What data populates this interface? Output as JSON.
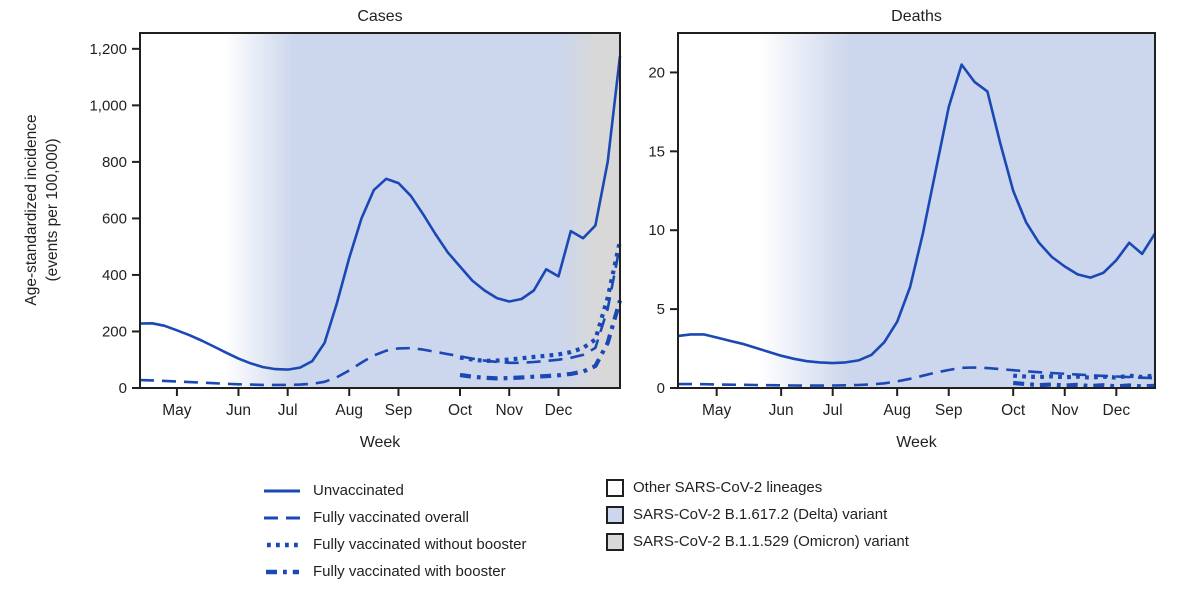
{
  "figure": {
    "ylabel_line1": "Age-standardized incidence",
    "ylabel_line2": "(events per 100,000)"
  },
  "colors": {
    "line": "#1a49b5",
    "axis": "#221f1f",
    "other_lineages_fill": "#ffffff",
    "delta_fill": "#ccd6ec",
    "omicron_fill": "#d8d8d8"
  },
  "legend": {
    "lines": [
      {
        "label": "Unvaccinated",
        "style": "solid"
      },
      {
        "label": "Fully vaccinated overall",
        "style": "dashed"
      },
      {
        "label": "Fully vaccinated without booster",
        "style": "dotted"
      },
      {
        "label": "Fully vaccinated with booster",
        "style": "dashdot"
      }
    ],
    "regions": [
      {
        "label": "Other SARS-CoV-2 lineages",
        "fill": "#ffffff"
      },
      {
        "label": "SARS-CoV-2 B.1.617.2 (Delta) variant",
        "fill": "#ccd6ec"
      },
      {
        "label": "SARS-CoV-2 B.1.1.529 (Omicron) variant",
        "fill": "#d8d8d8"
      }
    ]
  },
  "chart_data": [
    {
      "type": "line",
      "name": "cases",
      "title": "Cases",
      "xlabel": "Week",
      "ylabel": "Age-standardized incidence (events per 100,000)",
      "ylim": [
        0,
        1256
      ],
      "n_points": 40,
      "yticks": [
        {
          "value": 0,
          "label": "0"
        },
        {
          "value": 200,
          "label": "200"
        },
        {
          "value": 400,
          "label": "400"
        },
        {
          "value": 600,
          "label": "600"
        },
        {
          "value": 800,
          "label": "800"
        },
        {
          "value": 1000,
          "label": "1,000"
        },
        {
          "value": 1200,
          "label": "1,200"
        }
      ],
      "month_ticks": [
        {
          "week": 3,
          "label": "May"
        },
        {
          "week": 8,
          "label": "Jun"
        },
        {
          "week": 12,
          "label": "Jul"
        },
        {
          "week": 17,
          "label": "Aug"
        },
        {
          "week": 21,
          "label": "Sep"
        },
        {
          "week": 26,
          "label": "Oct"
        },
        {
          "week": 30,
          "label": "Nov"
        },
        {
          "week": 34,
          "label": "Dec"
        }
      ],
      "shading_stops": [
        {
          "offset": 0,
          "color": "#ffffff"
        },
        {
          "offset": 0.175,
          "color": "#ffffff"
        },
        {
          "offset": 0.32,
          "color": "#ccd6ec"
        },
        {
          "offset": 0.875,
          "color": "#ccd6ec"
        },
        {
          "offset": 0.952,
          "color": "#d8d8d8"
        },
        {
          "offset": 1,
          "color": "#d8d8d8"
        }
      ],
      "series": [
        {
          "id": "unvaccinated",
          "label": "Unvaccinated",
          "style": "solid",
          "values": [
            228,
            229,
            220,
            204,
            187,
            168,
            147,
            125,
            104,
            87,
            74,
            67,
            65,
            72,
            95,
            160,
            300,
            460,
            600,
            700,
            740,
            725,
            680,
            615,
            545,
            480,
            430,
            380,
            345,
            318,
            306,
            315,
            345,
            420,
            395,
            555,
            530,
            575,
            800,
            1175
          ]
        },
        {
          "id": "fully-vaccinated-overall",
          "label": "Fully vaccinated overall",
          "style": "dashed",
          "values": [
            28,
            27,
            25,
            23,
            21,
            19,
            17,
            15,
            13,
            12,
            11,
            11,
            11,
            12,
            15,
            22,
            38,
            62,
            90,
            115,
            132,
            140,
            141,
            136,
            128,
            120,
            112,
            104,
            97,
            92,
            89,
            89,
            92,
            96,
            100,
            107,
            117,
            142,
            280,
            505
          ]
        },
        {
          "id": "fully-vaccinated-without-booster",
          "label": "Fully vaccinated without booster",
          "style": "dotted",
          "values": [
            null,
            null,
            null,
            null,
            null,
            null,
            null,
            null,
            null,
            null,
            null,
            null,
            null,
            null,
            null,
            null,
            null,
            null,
            null,
            null,
            null,
            null,
            null,
            null,
            null,
            null,
            108,
            101,
            96,
            97,
            101,
            105,
            110,
            114,
            119,
            127,
            142,
            172,
            320,
            520
          ]
        },
        {
          "id": "fully-vaccinated-with-booster",
          "label": "Fully vaccinated with booster",
          "style": "dashdot",
          "values": [
            null,
            null,
            null,
            null,
            null,
            null,
            null,
            null,
            null,
            null,
            null,
            null,
            null,
            null,
            null,
            null,
            null,
            null,
            null,
            null,
            null,
            null,
            null,
            null,
            null,
            null,
            46,
            40,
            36,
            34,
            35,
            37,
            40,
            42,
            45,
            50,
            58,
            78,
            160,
            310
          ]
        }
      ]
    },
    {
      "type": "line",
      "name": "deaths",
      "title": "Deaths",
      "xlabel": "Week",
      "ylabel": "Age-standardized incidence (events per 100,000)",
      "ylim": [
        0,
        22.5
      ],
      "n_points": 38,
      "yticks": [
        {
          "value": 0,
          "label": "0"
        },
        {
          "value": 5,
          "label": "5"
        },
        {
          "value": 10,
          "label": "10"
        },
        {
          "value": 15,
          "label": "15"
        },
        {
          "value": 20,
          "label": "20"
        }
      ],
      "month_ticks": [
        {
          "week": 3,
          "label": "May"
        },
        {
          "week": 8,
          "label": "Jun"
        },
        {
          "week": 12,
          "label": "Jul"
        },
        {
          "week": 17,
          "label": "Aug"
        },
        {
          "week": 21,
          "label": "Sep"
        },
        {
          "week": 26,
          "label": "Oct"
        },
        {
          "week": 30,
          "label": "Nov"
        },
        {
          "week": 34,
          "label": "Dec"
        }
      ],
      "shading_stops": [
        {
          "offset": 0,
          "color": "#ffffff"
        },
        {
          "offset": 0.17,
          "color": "#ffffff"
        },
        {
          "offset": 0.36,
          "color": "#ccd6ec"
        },
        {
          "offset": 1,
          "color": "#ccd6ec"
        }
      ],
      "series": [
        {
          "id": "unvaccinated",
          "label": "Unvaccinated",
          "style": "solid",
          "values": [
            3.3,
            3.4,
            3.4,
            3.2,
            3.0,
            2.8,
            2.55,
            2.3,
            2.05,
            1.85,
            1.7,
            1.62,
            1.58,
            1.62,
            1.75,
            2.1,
            2.9,
            4.2,
            6.4,
            9.8,
            13.8,
            17.8,
            20.5,
            19.4,
            18.8,
            15.5,
            12.5,
            10.5,
            9.2,
            8.3,
            7.7,
            7.2,
            7.0,
            7.3,
            8.1,
            9.2,
            8.5,
            9.8
          ]
        },
        {
          "id": "fully-vaccinated-overall",
          "label": "Fully vaccinated overall",
          "style": "dashed",
          "values": [
            0.25,
            0.25,
            0.24,
            0.22,
            0.21,
            0.2,
            0.19,
            0.18,
            0.17,
            0.16,
            0.15,
            0.15,
            0.16,
            0.17,
            0.19,
            0.23,
            0.3,
            0.42,
            0.58,
            0.78,
            0.98,
            1.14,
            1.28,
            1.3,
            1.26,
            1.2,
            1.13,
            1.06,
            1.0,
            0.95,
            0.9,
            0.85,
            0.81,
            0.77,
            0.73,
            0.69,
            0.65,
            0.62
          ]
        },
        {
          "id": "fully-vaccinated-without-booster",
          "label": "Fully vaccinated without booster",
          "style": "dotted",
          "values": [
            null,
            null,
            null,
            null,
            null,
            null,
            null,
            null,
            null,
            null,
            null,
            null,
            null,
            null,
            null,
            null,
            null,
            null,
            null,
            null,
            null,
            null,
            null,
            null,
            null,
            null,
            0.78,
            0.72,
            0.7,
            0.74,
            0.68,
            0.73,
            0.65,
            0.72,
            0.66,
            0.78,
            0.7,
            0.8
          ]
        },
        {
          "id": "fully-vaccinated-with-booster",
          "label": "Fully vaccinated with booster",
          "style": "dashdot",
          "values": [
            null,
            null,
            null,
            null,
            null,
            null,
            null,
            null,
            null,
            null,
            null,
            null,
            null,
            null,
            null,
            null,
            null,
            null,
            null,
            null,
            null,
            null,
            null,
            null,
            null,
            null,
            0.32,
            0.25,
            0.18,
            0.22,
            0.15,
            0.2,
            0.12,
            0.18,
            0.1,
            0.16,
            0.1,
            0.14
          ]
        }
      ]
    }
  ]
}
